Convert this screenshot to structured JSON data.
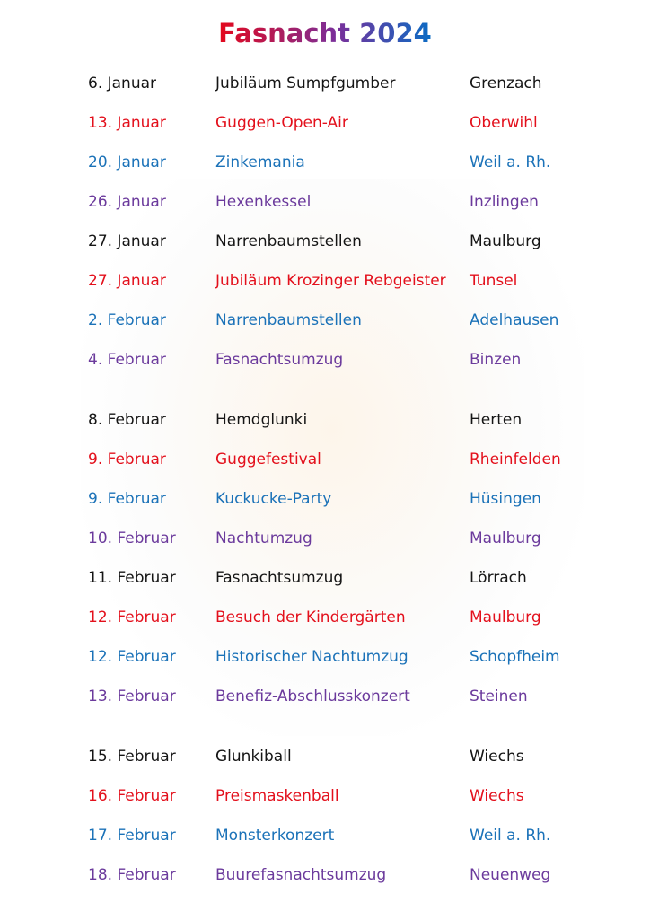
{
  "title": "Fasnacht 2024",
  "colors": {
    "black": "#151515",
    "red": "#e3101c",
    "blue": "#1b72b8",
    "purple": "#6b3a9c"
  },
  "events": [
    {
      "date": "6. Januar",
      "event": "Jubiläum Sumpfgumber",
      "place": "Grenzach",
      "color": "black"
    },
    {
      "date": "13. Januar",
      "event": "Guggen-Open-Air",
      "place": "Oberwihl",
      "color": "red"
    },
    {
      "date": "20. Januar",
      "event": "Zinkemania",
      "place": "Weil a. Rh.",
      "color": "blue"
    },
    {
      "date": "26. Januar",
      "event": "Hexenkessel",
      "place": "Inzlingen",
      "color": "purple"
    },
    {
      "date": "27. Januar",
      "event": "Narrenbaumstellen",
      "place": "Maulburg",
      "color": "black"
    },
    {
      "date": "27. Januar",
      "event": "Jubiläum Krozinger Rebgeister",
      "place": "Tunsel",
      "color": "red"
    },
    {
      "date": "2. Februar",
      "event": "Narrenbaumstellen",
      "place": "Adelhausen",
      "color": "blue"
    },
    {
      "date": "4. Februar",
      "event": "Fasnachtsumzug",
      "place": "Binzen",
      "color": "purple"
    },
    {
      "date": "8. Februar",
      "event": "Hemdglunki",
      "place": "Herten",
      "color": "black"
    },
    {
      "date": "9. Februar",
      "event": "Guggefestival",
      "place": "Rheinfelden",
      "color": "red"
    },
    {
      "date": "9. Februar",
      "event": "Kuckucke-Party",
      "place": "Hüsingen",
      "color": "blue"
    },
    {
      "date": "10. Februar",
      "event": "Nachtumzug",
      "place": "Maulburg",
      "color": "purple"
    },
    {
      "date": "11. Februar",
      "event": "Fasnachtsumzug",
      "place": "Lörrach",
      "color": "black"
    },
    {
      "date": "12. Februar",
      "event": "Besuch der Kindergärten",
      "place": "Maulburg",
      "color": "red"
    },
    {
      "date": "12. Februar",
      "event": "Historischer Nachtumzug",
      "place": "Schopfheim",
      "color": "blue"
    },
    {
      "date": "13. Februar",
      "event": "Benefiz-Abschlusskonzert",
      "place": "Steinen",
      "color": "purple"
    },
    {
      "date": "15. Februar",
      "event": "Glunkiball",
      "place": "Wiechs",
      "color": "black"
    },
    {
      "date": "16. Februar",
      "event": "Preismaskenball",
      "place": "Wiechs",
      "color": "red"
    },
    {
      "date": "17. Februar",
      "event": "Monsterkonzert",
      "place": "Weil a. Rh.",
      "color": "blue"
    },
    {
      "date": "18. Februar",
      "event": "Buurefasnachtsumzug",
      "place": "Neuenweg",
      "color": "purple"
    }
  ]
}
